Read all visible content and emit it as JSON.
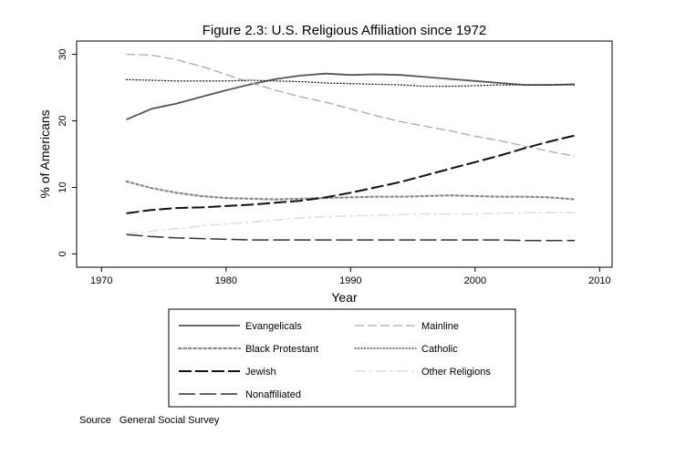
{
  "chart_data": {
    "type": "line",
    "title": "Figure 2.3: U.S. Religious Affiliation since 1972",
    "xlabel": "Year",
    "ylabel": "% of Americans",
    "xlim": [
      1968,
      2011
    ],
    "ylim": [
      -2,
      32
    ],
    "xticks": [
      1970,
      1980,
      1990,
      2000,
      2010
    ],
    "yticks": [
      0,
      10,
      20,
      30
    ],
    "grid": false,
    "legend_position": "below",
    "x": [
      1972,
      1974,
      1976,
      1978,
      1980,
      1982,
      1984,
      1986,
      1988,
      1990,
      1992,
      1994,
      1996,
      1998,
      2000,
      2002,
      2004,
      2006,
      2008
    ],
    "series": [
      {
        "name": "Evangelicals",
        "color": "#555555",
        "dash": "solid",
        "values": [
          20.2,
          21.8,
          22.6,
          23.6,
          24.6,
          25.5,
          26.3,
          26.8,
          27.1,
          26.9,
          27.0,
          26.9,
          26.6,
          26.3,
          26.0,
          25.7,
          25.4,
          25.4,
          25.5
        ]
      },
      {
        "name": "Mainline",
        "color": "#aaaaaa",
        "dash": "mainline",
        "values": [
          30.0,
          29.9,
          29.2,
          28.2,
          27.0,
          25.7,
          24.6,
          23.6,
          22.8,
          21.8,
          20.8,
          19.9,
          19.2,
          18.5,
          17.7,
          17.0,
          16.2,
          15.4,
          14.7
        ]
      },
      {
        "name": "Black Protestant",
        "color": "#8a8a8a",
        "dash": "dots",
        "values": [
          10.9,
          9.9,
          9.2,
          8.7,
          8.4,
          8.3,
          8.2,
          8.3,
          8.4,
          8.5,
          8.6,
          8.6,
          8.7,
          8.8,
          8.7,
          8.6,
          8.6,
          8.5,
          8.2
        ]
      },
      {
        "name": "Catholic",
        "color": "#222222",
        "dash": "catholic",
        "values": [
          26.2,
          26.1,
          26.0,
          26.0,
          26.0,
          26.1,
          26.0,
          25.9,
          25.7,
          25.6,
          25.5,
          25.4,
          25.2,
          25.2,
          25.3,
          25.4,
          25.4,
          25.4,
          25.4
        ]
      },
      {
        "name": "Jewish",
        "color": "#111111",
        "dash": "jewish",
        "values": [
          6.1,
          6.6,
          6.9,
          7.0,
          7.2,
          7.4,
          7.7,
          8.0,
          8.5,
          9.2,
          10.0,
          10.8,
          11.8,
          12.8,
          13.8,
          14.8,
          15.9,
          16.9,
          17.8
        ]
      },
      {
        "name": "Other Religions",
        "color": "#dddddd",
        "dash": "other",
        "values": [
          3.0,
          3.4,
          3.8,
          4.2,
          4.5,
          4.8,
          5.1,
          5.4,
          5.6,
          5.7,
          5.8,
          5.9,
          6.0,
          6.0,
          6.0,
          6.1,
          6.2,
          6.2,
          6.2
        ]
      },
      {
        "name": "Nonaffiliated",
        "color": "#333333",
        "dash": "nonaff",
        "values": [
          2.9,
          2.6,
          2.4,
          2.3,
          2.2,
          2.1,
          2.1,
          2.1,
          2.1,
          2.1,
          2.1,
          2.1,
          2.1,
          2.1,
          2.1,
          2.1,
          2.0,
          2.0,
          2.0
        ]
      }
    ]
  },
  "legend": {
    "items": [
      "Evangelicals",
      "Mainline",
      "Black Protestant",
      "Catholic",
      "Jewish",
      "Other Religions",
      "Nonaffiliated"
    ]
  },
  "source": {
    "label": "Source",
    "text": "General Social Survey"
  }
}
